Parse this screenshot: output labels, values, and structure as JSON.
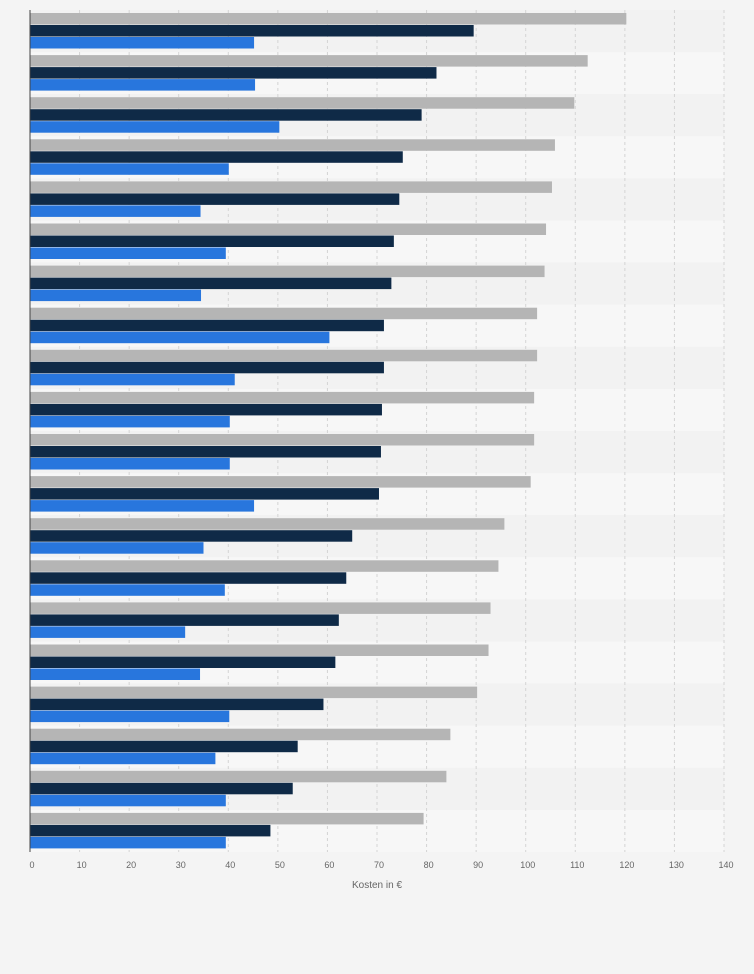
{
  "chart_data": {
    "type": "bar",
    "orientation": "horizontal",
    "xlabel": "Kosten in €",
    "xlim": [
      0,
      140
    ],
    "x_ticks": [
      "0",
      "10",
      "20",
      "30",
      "40",
      "50",
      "60",
      "70",
      "80",
      "90",
      "100",
      "110",
      "120",
      "130",
      "140"
    ],
    "grid": true,
    "categories": [
      "",
      "",
      "",
      "",
      "",
      "",
      "",
      "",
      "",
      "",
      "",
      "",
      "",
      "",
      "",
      "",
      "",
      "",
      "",
      ""
    ],
    "series": [
      {
        "color": "#b5b5b5",
        "values": [
          120.3,
          112.5,
          109.8,
          105.9,
          105.3,
          104.1,
          103.8,
          102.3,
          102.3,
          101.7,
          101.7,
          101.0,
          95.7,
          94.5,
          92.9,
          92.5,
          90.2,
          84.8,
          84.0,
          79.4
        ]
      },
      {
        "color": "#0f2a47",
        "values": [
          89.5,
          82.0,
          79.0,
          75.2,
          74.5,
          73.4,
          72.9,
          71.4,
          71.4,
          71.0,
          70.8,
          70.4,
          65.0,
          63.8,
          62.3,
          61.6,
          59.2,
          54.0,
          53.0,
          48.5
        ]
      },
      {
        "color": "#2876dd",
        "values": [
          45.2,
          45.4,
          50.3,
          40.1,
          34.4,
          39.5,
          34.5,
          60.4,
          41.3,
          40.3,
          40.3,
          45.2,
          35.0,
          39.3,
          31.3,
          34.3,
          40.2,
          37.4,
          39.5,
          39.5
        ]
      }
    ]
  }
}
